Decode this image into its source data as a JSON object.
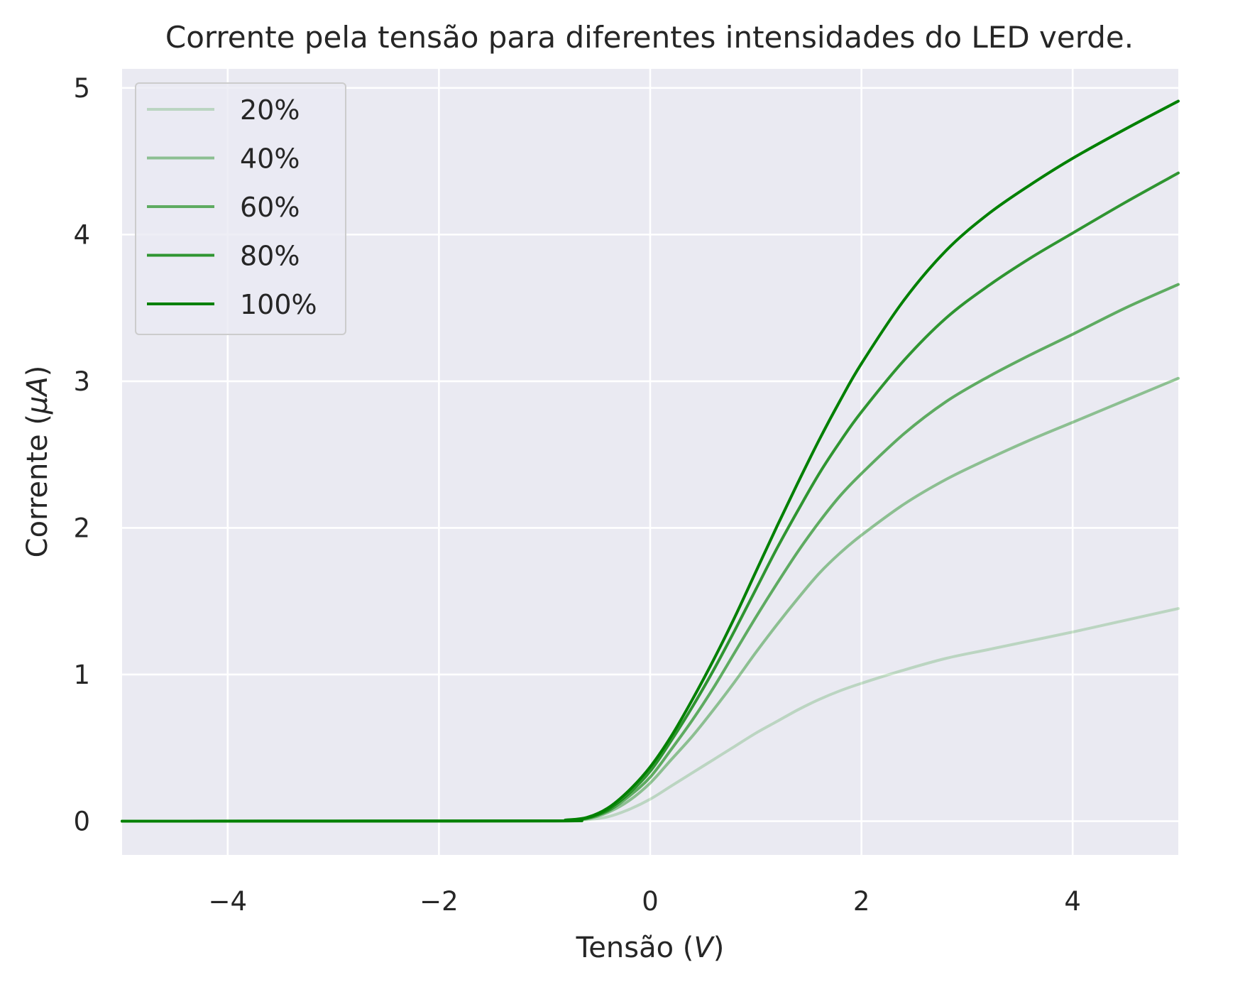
{
  "chart_data": {
    "type": "line",
    "title": "Corrente pela tensão para diferentes intensidades do LED verde.",
    "xlabel": "Tensão (V)",
    "xlabel_parts": [
      "Tensão (",
      "V",
      ")"
    ],
    "ylabel": "Corrente (μA)",
    "ylabel_parts": [
      "Corrente (",
      "μA",
      ")"
    ],
    "xlim": [
      -5,
      5
    ],
    "ylim": [
      -0.23,
      5.13
    ],
    "x_ticks": [
      -4,
      -2,
      0,
      2,
      4
    ],
    "x_tick_labels": [
      "−4",
      "−2",
      "0",
      "2",
      "4"
    ],
    "y_ticks": [
      0,
      1,
      2,
      3,
      4,
      5
    ],
    "y_tick_labels": [
      "0",
      "1",
      "2",
      "3",
      "4",
      "5"
    ],
    "grid": true,
    "legend_position": "upper-left",
    "background": "#eaeaf2",
    "x": [
      -5,
      -1,
      -0.8,
      -0.6,
      -0.4,
      -0.2,
      0,
      0.2,
      0.4,
      0.6,
      0.8,
      1,
      1.2,
      1.4,
      1.6,
      1.8,
      2,
      2.4,
      2.8,
      3.2,
      3.6,
      4,
      4.5,
      5
    ],
    "series": [
      {
        "name": "20%",
        "color": "#008000",
        "opacity": 0.2,
        "values": [
          0,
          0.002,
          0.004,
          0.01,
          0.03,
          0.08,
          0.15,
          0.24,
          0.33,
          0.42,
          0.51,
          0.6,
          0.68,
          0.76,
          0.83,
          0.89,
          0.94,
          1.03,
          1.11,
          1.17,
          1.23,
          1.29,
          1.37,
          1.45
        ]
      },
      {
        "name": "40%",
        "color": "#008000",
        "opacity": 0.4,
        "values": [
          0,
          0.002,
          0.005,
          0.015,
          0.06,
          0.14,
          0.26,
          0.42,
          0.58,
          0.76,
          0.95,
          1.15,
          1.34,
          1.52,
          1.69,
          1.83,
          1.95,
          2.16,
          2.33,
          2.47,
          2.6,
          2.72,
          2.87,
          3.02
        ]
      },
      {
        "name": "60%",
        "color": "#008000",
        "opacity": 0.6,
        "values": [
          0,
          0.002,
          0.006,
          0.02,
          0.07,
          0.17,
          0.3,
          0.49,
          0.69,
          0.91,
          1.15,
          1.39,
          1.62,
          1.84,
          2.04,
          2.22,
          2.37,
          2.64,
          2.86,
          3.03,
          3.18,
          3.32,
          3.5,
          3.66
        ]
      },
      {
        "name": "80%",
        "color": "#008000",
        "opacity": 0.8,
        "values": [
          0,
          0.002,
          0.007,
          0.022,
          0.08,
          0.19,
          0.34,
          0.55,
          0.78,
          1.03,
          1.3,
          1.58,
          1.86,
          2.12,
          2.37,
          2.59,
          2.79,
          3.14,
          3.43,
          3.65,
          3.84,
          4.01,
          4.22,
          4.42
        ]
      },
      {
        "name": "100%",
        "color": "#008000",
        "opacity": 1.0,
        "values": [
          0,
          0.002,
          0.008,
          0.025,
          0.09,
          0.21,
          0.37,
          0.58,
          0.83,
          1.1,
          1.39,
          1.7,
          2.01,
          2.31,
          2.6,
          2.87,
          3.12,
          3.55,
          3.89,
          4.14,
          4.34,
          4.52,
          4.72,
          4.91
        ]
      }
    ]
  }
}
